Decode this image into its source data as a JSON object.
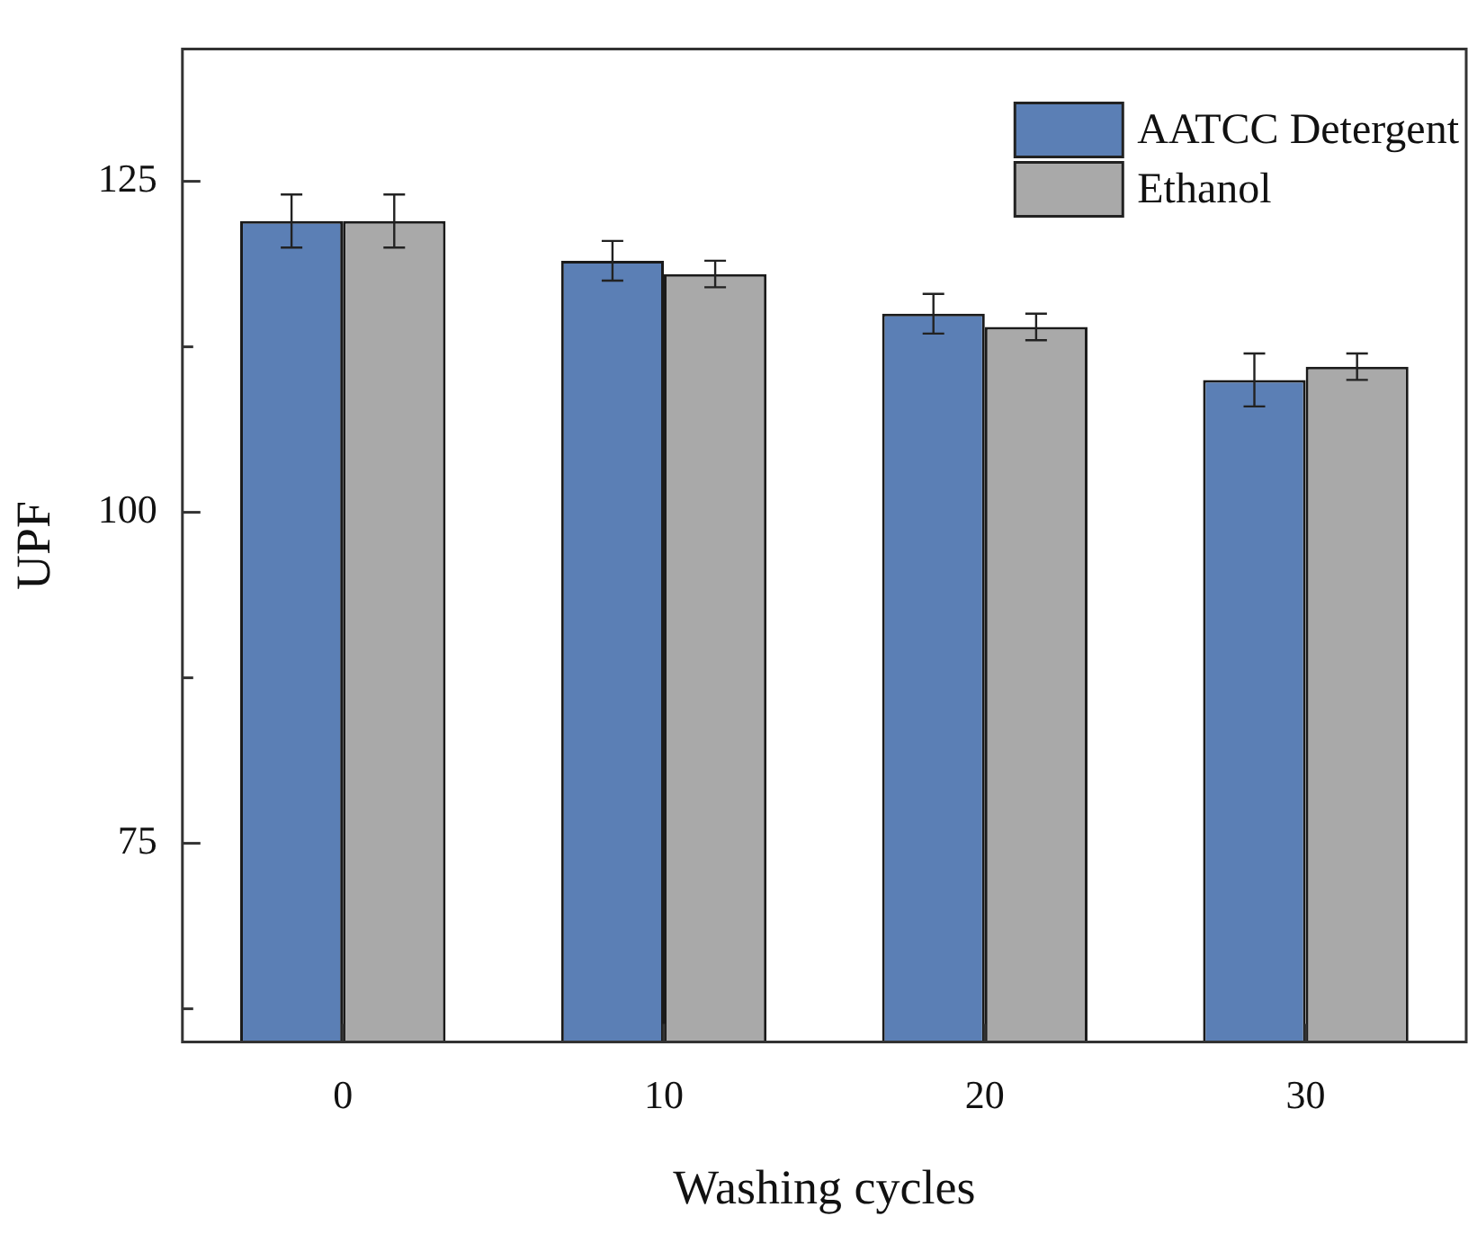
{
  "chart_data": {
    "type": "bar",
    "xlabel": "Washing cycles",
    "ylabel": "UPF",
    "categories": [
      "0",
      "10",
      "20",
      "30"
    ],
    "series": [
      {
        "name": "AATCC Detergent",
        "color": "#5b7fb5",
        "values": [
          122,
          119,
          115,
          110
        ],
        "errors": [
          2,
          1.5,
          1.5,
          2
        ]
      },
      {
        "name": "Ethanol",
        "color": "#a9a9a9",
        "values": [
          122,
          118,
          114,
          111
        ],
        "errors": [
          2,
          1,
          1,
          1
        ]
      }
    ],
    "ylim": [
      60,
      135
    ],
    "yticks": [
      {
        "value": 62.5,
        "label": null
      },
      75,
      {
        "value": 87.5,
        "label": null
      },
      100,
      {
        "value": 112.5,
        "label": null
      },
      125
    ],
    "grid": false,
    "legend": "top right"
  }
}
